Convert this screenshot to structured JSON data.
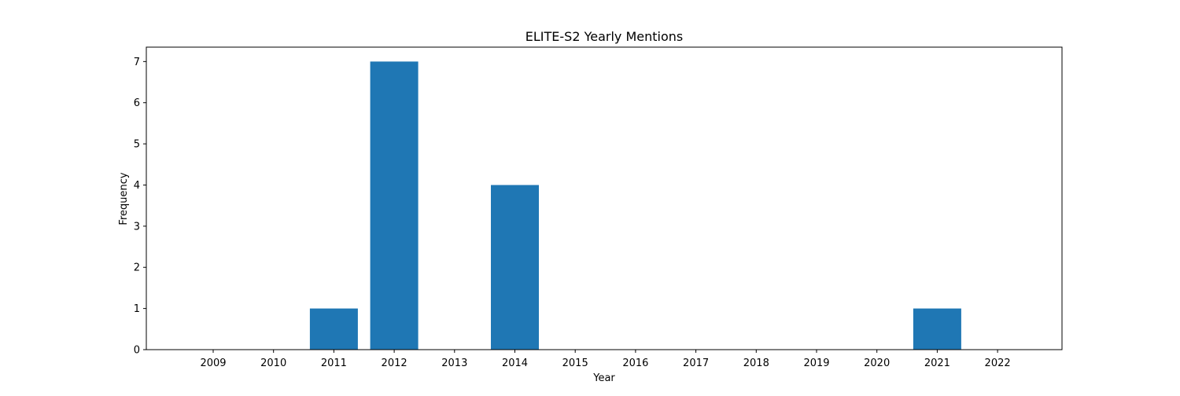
{
  "chart_data": {
    "type": "bar",
    "title": "ELITE-S2 Yearly Mentions",
    "xlabel": "Year",
    "ylabel": "Frequency",
    "categories": [
      "2009",
      "2010",
      "2011",
      "2012",
      "2013",
      "2014",
      "2015",
      "2016",
      "2017",
      "2018",
      "2019",
      "2020",
      "2021",
      "2022"
    ],
    "values": [
      0,
      0,
      1,
      7,
      0,
      4,
      0,
      0,
      0,
      0,
      0,
      0,
      1,
      0
    ],
    "ylim": [
      0,
      7.35
    ],
    "yticks": [
      0,
      1,
      2,
      3,
      4,
      5,
      6,
      7
    ],
    "grid": false,
    "legend": "none",
    "colors": {
      "bar": "#1f77b4",
      "axis": "#000000"
    }
  }
}
